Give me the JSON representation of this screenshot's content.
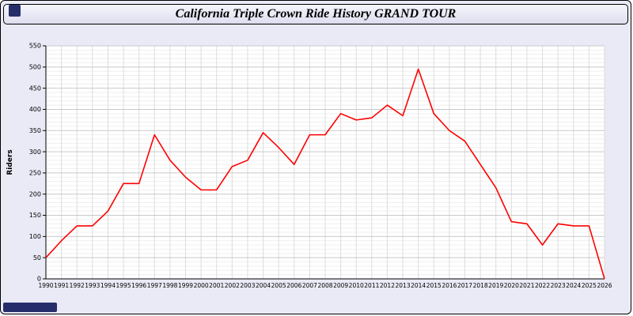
{
  "window": {
    "title": "California Triple Crown Ride History GRAND TOUR"
  },
  "chart_data": {
    "type": "line",
    "title": "California Triple Crown Ride History GRAND TOUR",
    "xlabel": "",
    "ylabel": "Riders",
    "ylim": [
      0,
      550
    ],
    "ytick_step": 50,
    "ytick_minor_step": 10,
    "grid": true,
    "legend_position": "none",
    "x": [
      1990,
      1991,
      1992,
      1993,
      1994,
      1995,
      1996,
      1997,
      1998,
      1999,
      2000,
      2001,
      2002,
      2003,
      2004,
      2005,
      2006,
      2007,
      2008,
      2009,
      2010,
      2011,
      2012,
      2013,
      2014,
      2015,
      2016,
      2017,
      2018,
      2019,
      2020,
      2021,
      2022,
      2023,
      2024,
      2025,
      2026
    ],
    "series": [
      {
        "name": "Riders",
        "color": "#FF0000",
        "values": [
          50,
          90,
          125,
          125,
          160,
          225,
          225,
          340,
          280,
          240,
          210,
          210,
          265,
          280,
          345,
          310,
          270,
          340,
          340,
          390,
          375,
          380,
          410,
          385,
          495,
          390,
          350,
          325,
          270,
          215,
          135,
          130,
          80,
          130,
          125,
          125,
          0
        ]
      }
    ]
  },
  "colors": {
    "background": "#EAEAF6",
    "plot_background": "#FFFFFF",
    "major_grid": "#C9C9C9",
    "minor_grid": "#EFEFEF",
    "vertical_grid": "#DCDCDC",
    "axis": "#000000",
    "line": "#FF0000",
    "accent_block": "#252E6B"
  }
}
